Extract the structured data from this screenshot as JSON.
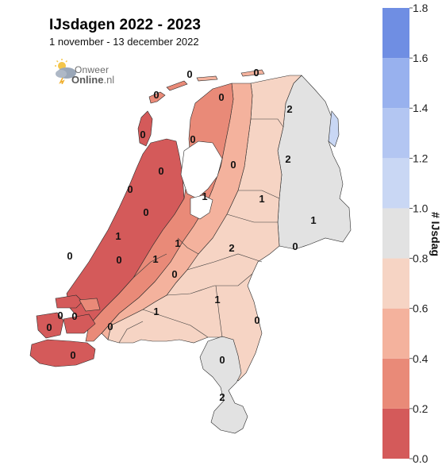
{
  "title": "IJsdagen 2022 - 2023",
  "subtitle": "1 november - 13 december 2022",
  "logo": {
    "line1": "Onweer",
    "line2": "Online",
    "suffix": ".nl"
  },
  "chart_data": {
    "type": "heatmap",
    "colorbar": {
      "label": "# IJsdag",
      "min": 0.0,
      "max": 1.8,
      "ticks": [
        "0.0",
        "0.2",
        "0.4",
        "0.6",
        "0.8",
        "1.0",
        "1.2",
        "1.4",
        "1.6",
        "1.8"
      ],
      "bands": [
        {
          "from": 0.0,
          "to": 0.2,
          "color": "#d45a5a"
        },
        {
          "from": 0.2,
          "to": 0.4,
          "color": "#e98a78"
        },
        {
          "from": 0.4,
          "to": 0.6,
          "color": "#f4b29d"
        },
        {
          "from": 0.6,
          "to": 0.8,
          "color": "#f6d4c4"
        },
        {
          "from": 0.8,
          "to": 1.0,
          "color": "#e2e2e2"
        },
        {
          "from": 1.0,
          "to": 1.2,
          "color": "#c9d7f4"
        },
        {
          "from": 1.2,
          "to": 1.4,
          "color": "#b3c6f2"
        },
        {
          "from": 1.4,
          "to": 1.6,
          "color": "#98b1ee"
        },
        {
          "from": 1.6,
          "to": 1.8,
          "color": "#6f8ee3"
        }
      ]
    },
    "station_values": [
      {
        "value": "0"
      },
      {
        "value": "0"
      },
      {
        "value": "0"
      },
      {
        "value": "0"
      },
      {
        "value": "0"
      },
      {
        "value": "0"
      },
      {
        "value": "2"
      },
      {
        "value": "2"
      },
      {
        "value": "0"
      },
      {
        "value": "0"
      },
      {
        "value": "0"
      },
      {
        "value": "1"
      },
      {
        "value": "0"
      },
      {
        "value": "1"
      },
      {
        "value": "1"
      },
      {
        "value": "1"
      },
      {
        "value": "0"
      },
      {
        "value": "1"
      },
      {
        "value": "0"
      },
      {
        "value": "2"
      },
      {
        "value": "0"
      },
      {
        "value": "1"
      },
      {
        "value": "0"
      },
      {
        "value": "0"
      },
      {
        "value": "1"
      },
      {
        "value": "0"
      },
      {
        "value": "1"
      },
      {
        "value": "0"
      },
      {
        "value": "0"
      },
      {
        "value": "0"
      },
      {
        "value": "0"
      },
      {
        "value": "0"
      },
      {
        "value": "2"
      }
    ]
  }
}
